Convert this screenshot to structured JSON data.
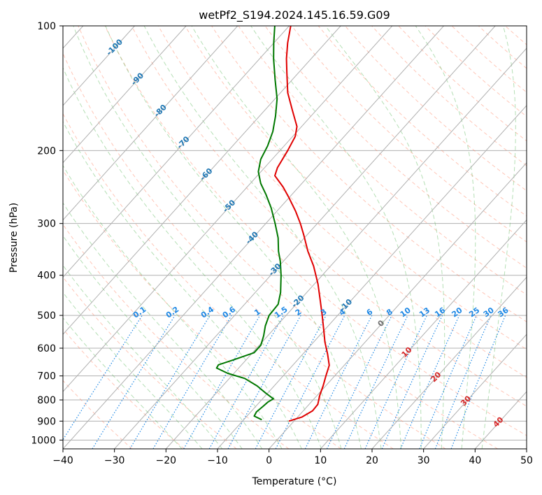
{
  "chart_data": {
    "type": "skew-t",
    "title": "wetPf2_S194.2024.145.16.59.G09",
    "xlabel": "Temperature (°C)",
    "ylabel": "Pressure (hPa)",
    "xlim": [
      -40,
      50
    ],
    "ylim_hpa": [
      1050,
      100
    ],
    "x_ticks": [
      "−40",
      "−30",
      "−20",
      "−10",
      "0",
      "10",
      "20",
      "30",
      "40",
      "50"
    ],
    "y_ticks": [
      "100",
      "200",
      "300",
      "400",
      "500",
      "600",
      "700",
      "800",
      "900",
      "1000"
    ],
    "grid": true,
    "series": [
      {
        "kind": "temperature",
        "color": "#e00000",
        "points": [
          {
            "p": 900,
            "t": -1.0
          },
          {
            "p": 880,
            "t": 0.8
          },
          {
            "p": 850,
            "t": 1.8
          },
          {
            "p": 820,
            "t": 1.7
          },
          {
            "p": 780,
            "t": 0.5
          },
          {
            "p": 740,
            "t": -0.5
          },
          {
            "p": 700,
            "t": -1.7
          },
          {
            "p": 660,
            "t": -2.9
          },
          {
            "p": 620,
            "t": -5.2
          },
          {
            "p": 580,
            "t": -7.8
          },
          {
            "p": 540,
            "t": -10.3
          },
          {
            "p": 500,
            "t": -13.0
          },
          {
            "p": 460,
            "t": -16.0
          },
          {
            "p": 420,
            "t": -19.3
          },
          {
            "p": 380,
            "t": -23.3
          },
          {
            "p": 350,
            "t": -27.0
          },
          {
            "p": 320,
            "t": -30.6
          },
          {
            "p": 300,
            "t": -33.3
          },
          {
            "p": 280,
            "t": -36.4
          },
          {
            "p": 260,
            "t": -40.0
          },
          {
            "p": 245,
            "t": -43.0
          },
          {
            "p": 230,
            "t": -46.6
          },
          {
            "p": 220,
            "t": -47.5
          },
          {
            "p": 200,
            "t": -48.5
          },
          {
            "p": 185,
            "t": -49.5
          },
          {
            "p": 175,
            "t": -50.9
          },
          {
            "p": 160,
            "t": -54.6
          },
          {
            "p": 145,
            "t": -58.6
          },
          {
            "p": 130,
            "t": -62.2
          },
          {
            "p": 120,
            "t": -64.8
          },
          {
            "p": 110,
            "t": -67.3
          },
          {
            "p": 100,
            "t": -69.7
          }
        ]
      },
      {
        "kind": "dewpoint",
        "color": "#007800",
        "points": [
          {
            "p": 893,
            "t": -6.5
          },
          {
            "p": 875,
            "t": -8.6
          },
          {
            "p": 855,
            "t": -8.9
          },
          {
            "p": 830,
            "t": -8.6
          },
          {
            "p": 810,
            "t": -8.4
          },
          {
            "p": 795,
            "t": -7.9
          },
          {
            "p": 770,
            "t": -10.4
          },
          {
            "p": 740,
            "t": -13.3
          },
          {
            "p": 710,
            "t": -17.0
          },
          {
            "p": 690,
            "t": -21.2
          },
          {
            "p": 670,
            "t": -24.3
          },
          {
            "p": 658,
            "t": -24.5
          },
          {
            "p": 640,
            "t": -22.4
          },
          {
            "p": 615,
            "t": -19.7
          },
          {
            "p": 590,
            "t": -19.7
          },
          {
            "p": 560,
            "t": -20.8
          },
          {
            "p": 530,
            "t": -22.2
          },
          {
            "p": 500,
            "t": -23.3
          },
          {
            "p": 470,
            "t": -23.5
          },
          {
            "p": 440,
            "t": -25.1
          },
          {
            "p": 400,
            "t": -28.0
          },
          {
            "p": 370,
            "t": -30.6
          },
          {
            "p": 350,
            "t": -32.7
          },
          {
            "p": 325,
            "t": -35.1
          },
          {
            "p": 300,
            "t": -38.2
          },
          {
            "p": 275,
            "t": -41.7
          },
          {
            "p": 255,
            "t": -45.1
          },
          {
            "p": 240,
            "t": -48.0
          },
          {
            "p": 225,
            "t": -50.5
          },
          {
            "p": 210,
            "t": -52.2
          },
          {
            "p": 195,
            "t": -53.2
          },
          {
            "p": 180,
            "t": -54.7
          },
          {
            "p": 165,
            "t": -56.9
          },
          {
            "p": 150,
            "t": -59.6
          },
          {
            "p": 135,
            "t": -63.3
          },
          {
            "p": 120,
            "t": -67.3
          },
          {
            "p": 110,
            "t": -70.0
          },
          {
            "p": 100,
            "t": -72.8
          }
        ]
      }
    ],
    "isotherm_labels": [
      "-100",
      "-90",
      "-80",
      "-70",
      "-60",
      "-50",
      "-40",
      "-30",
      "-20",
      "-10",
      "0",
      "10",
      "20",
      "30",
      "40"
    ],
    "mixing_ratio_labels": [
      "0.1",
      "0.2",
      "0.4",
      "0.6",
      "1",
      "1.5",
      "2",
      "3",
      "4",
      "6",
      "8",
      "10",
      "13",
      "16",
      "20",
      "25",
      "30",
      "36"
    ],
    "colors": {
      "isotherm_label_cold": "#1f77b4",
      "isotherm_zero": "#707070",
      "isotherm_label_warm": "#d62728",
      "mixing_ratio": "#1e88e5",
      "dry_adiabat": "#ff8060",
      "moist_adiabat": "#5cb85c",
      "grid": "#b0b0b0"
    }
  }
}
